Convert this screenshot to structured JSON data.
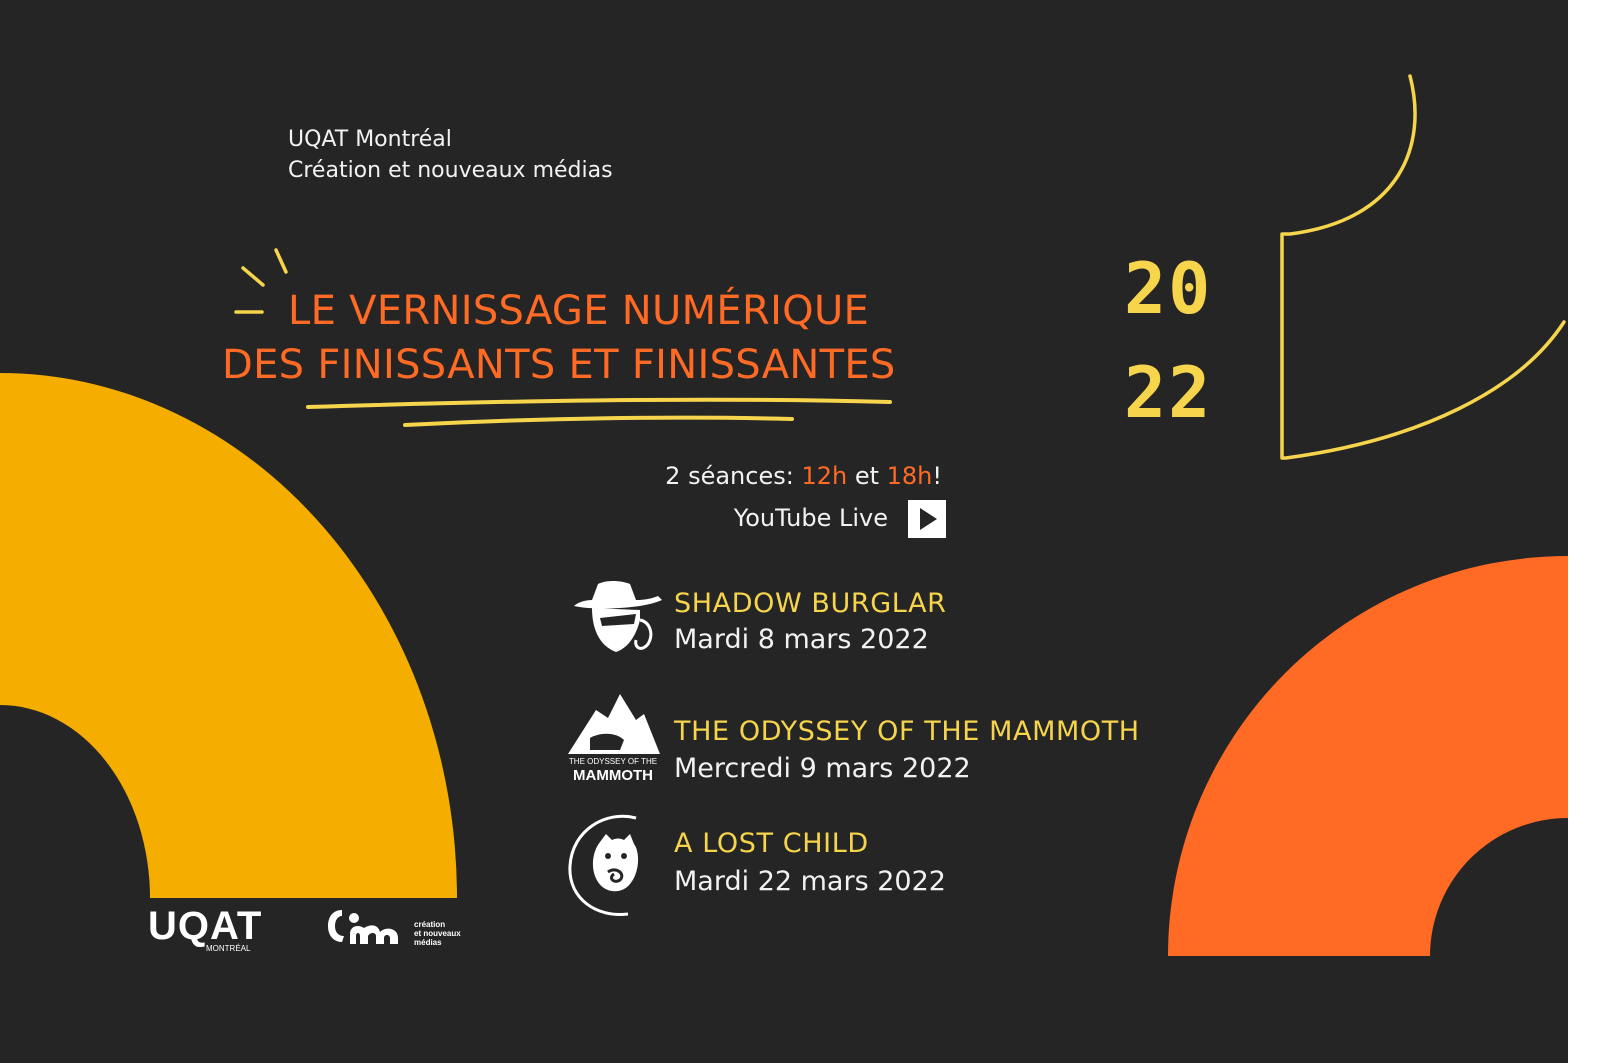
{
  "header": {
    "line1": "UQAT Montréal",
    "line2": "Création et nouveaux médias"
  },
  "title": {
    "line1": "LE VERNISSAGE NUMÉRIQUE",
    "line2": "DES FINISSANTS ET FINISSANTES"
  },
  "year": {
    "top": "20",
    "bottom": "22"
  },
  "sessions": {
    "prefix": "2 séances: ",
    "time1": "12h",
    "middle": " et ",
    "time2": "18h",
    "suffix": "!"
  },
  "stream": {
    "label": "YouTube Live"
  },
  "games": [
    {
      "name": "SHADOW BURGLAR",
      "date": "Mardi 8 mars 2022",
      "icon": "shadow-burglar-icon"
    },
    {
      "name": "THE ODYSSEY OF THE MAMMOTH",
      "date": "Mercredi 9 mars 2022",
      "icon": "mammoth-mountain-icon"
    },
    {
      "name": "A LOST CHILD",
      "date": "Mardi 22 mars 2022",
      "icon": "lost-child-creature-icon"
    }
  ],
  "logos": {
    "uqat": "UQAT",
    "uqat_sub": "MONTRÉAL",
    "cnm_line1": "création",
    "cnm_line2": "et nouveaux",
    "cnm_line3": "médias",
    "mammoth_line1": "THE ODYSSEY OF THE",
    "mammoth_line2": "MAMMOTH"
  },
  "colors": {
    "background": "#262525",
    "accent_orange": "#ff6a25",
    "accent_yellow": "#f6d54c",
    "shape_gold": "#f5ad00",
    "text_light": "#f2f2f2"
  }
}
